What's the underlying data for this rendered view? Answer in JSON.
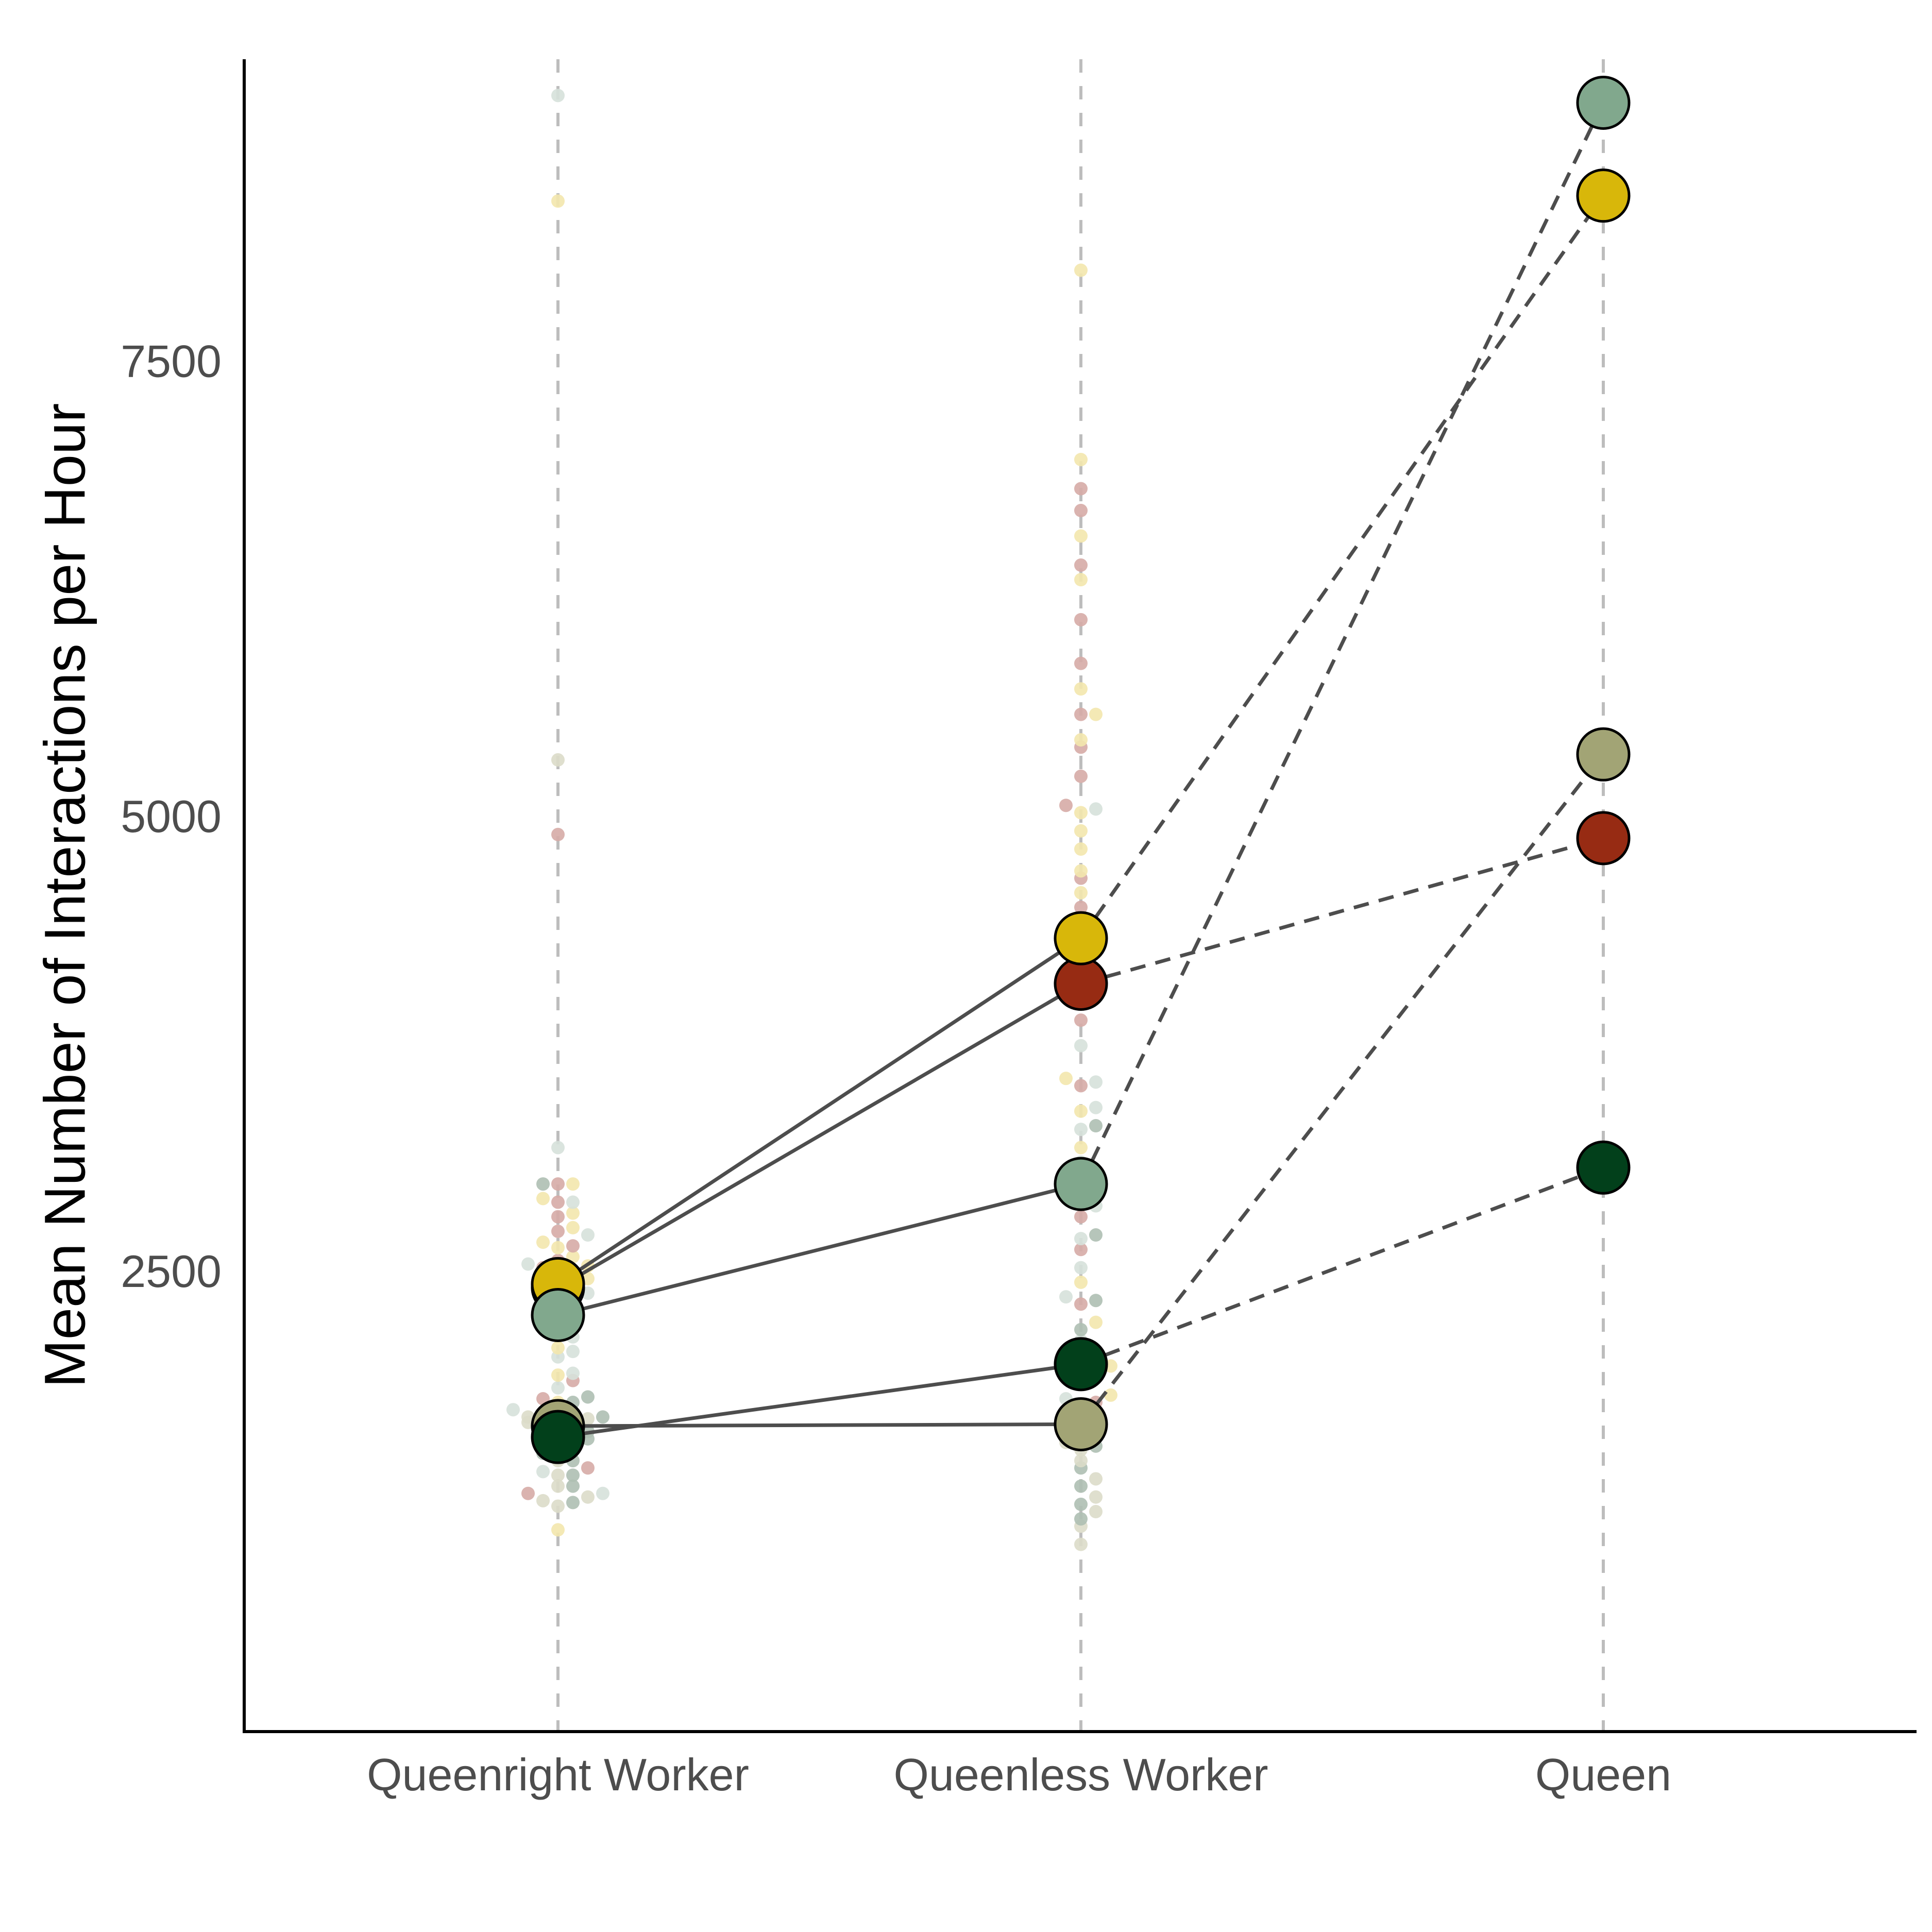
{
  "chart_data": {
    "type": "scatter",
    "title": "",
    "xlabel": "",
    "ylabel": "Mean Number of Interactions per Hour",
    "categories": [
      "Queenright Worker",
      "Queenless Worker",
      "Queen"
    ],
    "ylim": [
      0,
      9200
    ],
    "yticks": [
      2500,
      5000,
      7500
    ],
    "grid": false,
    "legend": "none",
    "colony_colors": {
      "red": "#972b13",
      "yellow": "#d8b70a",
      "sage": "#81a88d",
      "olive": "#a2a475",
      "dark_green": "#02401b"
    },
    "series": [
      {
        "color_key": "red",
        "values": [
          2430,
          4100,
          4900
        ],
        "bg_color": "#d6aba6"
      },
      {
        "color_key": "yellow",
        "values": [
          2450,
          4350,
          8430
        ],
        "bg_color": "#f3e7ad"
      },
      {
        "color_key": "sage",
        "values": [
          2280,
          3000,
          8940
        ],
        "bg_color": "#d6e1da"
      },
      {
        "color_key": "olive",
        "values": [
          1670,
          1680,
          5360
        ],
        "bg_color": "#dcdcc9"
      },
      {
        "color_key": "dark_green",
        "values": [
          1610,
          2010,
          3090
        ],
        "bg_color": "#aebfb2"
      }
    ],
    "connector_styles": {
      "worker_to_worker": "solid",
      "queenless_to_queen": "dashed"
    },
    "individual_points": [
      {
        "category": "Queenright Worker",
        "groups": [
          {
            "color_key": "red",
            "values": [
              2260,
              2340,
              2420,
              2500,
              2580,
              2660,
              2740,
              2820,
              2900,
              3000,
              2540,
              2460,
              2380,
              1700,
              1820,
              1920,
              1440,
              1300,
              4920
            ]
          },
          {
            "color_key": "yellow",
            "values": [
              2100,
              2200,
              2280,
              2360,
              2440,
              2520,
              2600,
              2680,
              2760,
              2840,
              2920,
              3000,
              2550,
              2480,
              1800,
              1950,
              1700,
              8400,
              1100,
              2650
            ]
          },
          {
            "color_key": "sage",
            "values": [
              3200,
              2900,
              2720,
              2560,
              2400,
              2240,
              2080,
              1960,
              1880,
              1760,
              1700,
              1640,
              2160,
              2050,
              1620,
              8980,
              1420,
              1300
            ]
          },
          {
            "color_key": "olive",
            "values": [
              1710,
              1640,
              1560,
              1480,
              1400,
              1340,
              1280,
              1230,
              1720,
              1600,
              5330,
              1260,
              1690
            ]
          },
          {
            "color_key": "dark_green",
            "values": [
              1800,
              1720,
              1640,
              1560,
              1480,
              1400,
              1340,
              1250,
              3000,
              1520,
              1830,
              1600
            ]
          }
        ]
      },
      {
        "category": "Queenless Worker",
        "groups": [
          {
            "color_key": "red",
            "values": [
              6820,
              6700,
              6400,
              6100,
              5860,
              5580,
              5400,
              5240,
              5080,
              4680,
              4520,
              3900,
              3540,
              3000,
              2820,
              2640,
              2340,
              1940,
              1800
            ]
          },
          {
            "color_key": "yellow",
            "values": [
              8020,
              6980,
              6560,
              6320,
              5720,
              5580,
              5440,
              5040,
              4940,
              4840,
              4720,
              4600,
              3580,
              3400,
              3200,
              2460,
              2240,
              2000,
              1840,
              2900
            ]
          },
          {
            "color_key": "sage",
            "values": [
              5060,
              3760,
              3560,
              3420,
              3120,
              2880,
              2700,
              2540,
              2380,
              2140,
              1940,
              1820,
              3300
            ]
          },
          {
            "color_key": "olive",
            "values": [
              1680,
              1580,
              1480,
              1380,
              1280,
              1200,
              1120,
              1020,
              1540
            ]
          },
          {
            "color_key": "dark_green",
            "values": [
              3320,
              2720,
              2360,
              2200,
              2060,
              1900,
              1780,
              1660,
              1560,
              1440,
              1340,
              1240,
              1160,
              1970,
              1700
            ]
          }
        ]
      }
    ]
  }
}
